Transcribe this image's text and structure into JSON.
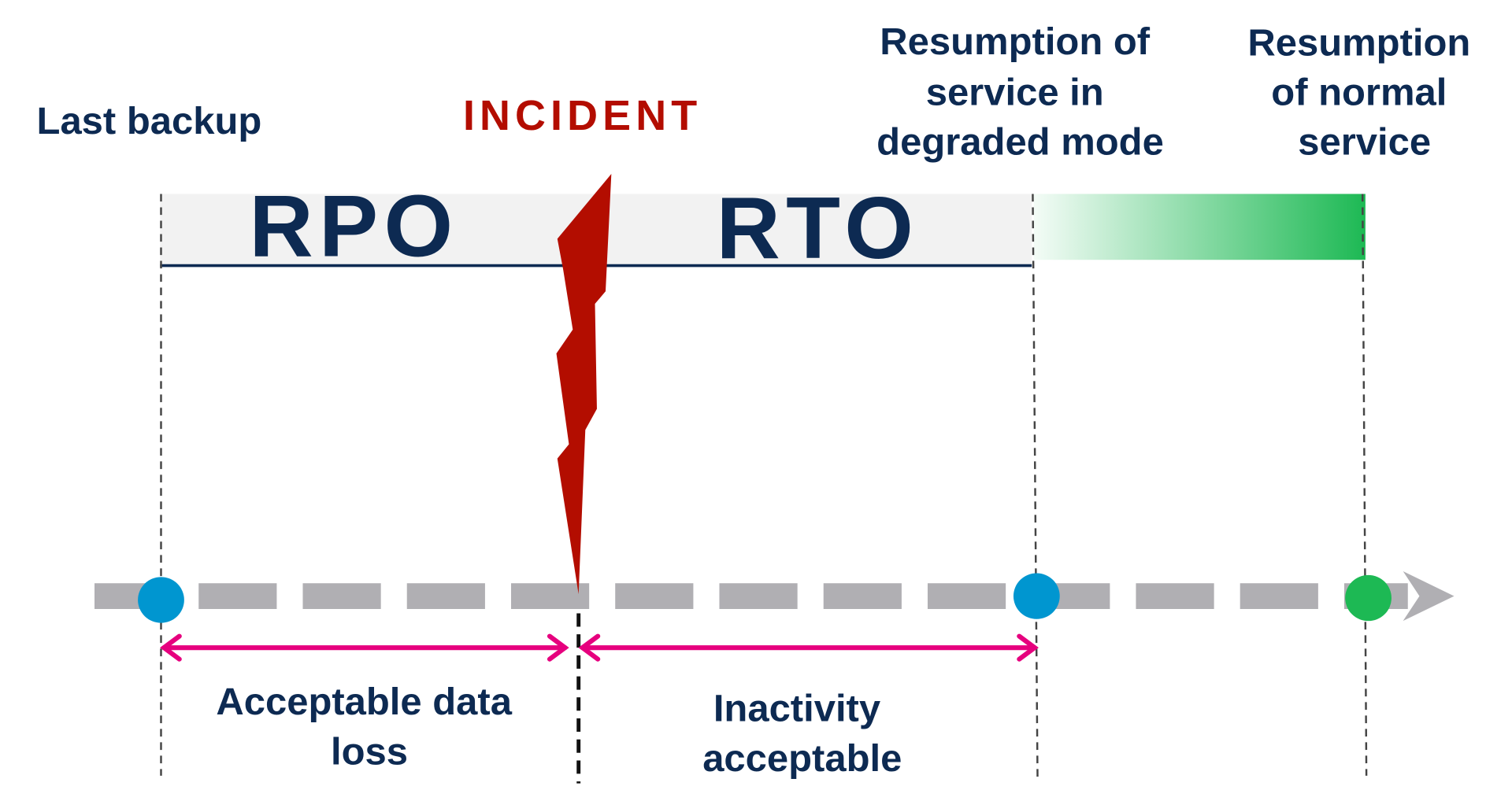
{
  "labels": {
    "last_backup": "Last backup",
    "incident": "INCIDENT",
    "degraded": [
      "Resumption of",
      "service in",
      "degraded mode"
    ],
    "normal": [
      "Resumption",
      "of normal",
      "service"
    ],
    "rpo": "RPO",
    "rto": "RTO",
    "data_loss": [
      "Acceptable data",
      "loss"
    ],
    "inactivity": [
      "Inactivity",
      "acceptable"
    ]
  },
  "colors": {
    "navy": "#0d2a52",
    "incident_red": "#b30d00",
    "timeline_gray": "#b0afb3",
    "milestone_blue": "#0096d0",
    "milestone_green": "#1db954",
    "span_arrow_pink": "#e6007e",
    "band_gray": "#f2f2f2"
  }
}
